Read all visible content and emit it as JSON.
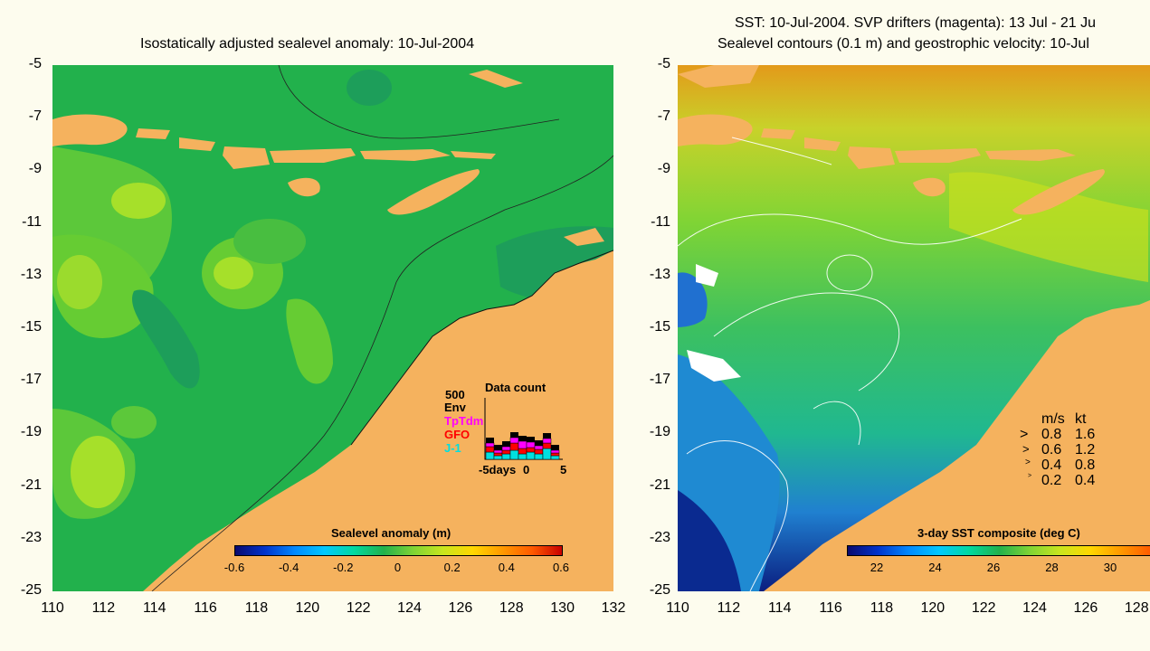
{
  "left_panel": {
    "title": "Isostatically adjusted sealevel anomaly: 10-Jul-2004",
    "y_ticks": [
      "-5",
      "-7",
      "-9",
      "-11",
      "-13",
      "-15",
      "-17",
      "-19",
      "-21",
      "-23",
      "-25"
    ],
    "x_ticks": [
      "110",
      "112",
      "114",
      "116",
      "118",
      "120",
      "122",
      "124",
      "126",
      "128",
      "130",
      "132"
    ],
    "colorbar": {
      "title": "Sealevel anomaly (m)",
      "ticks": [
        "-0.6",
        "-0.4",
        "-0.2",
        "0",
        "0.2",
        "0.4",
        "0.6"
      ]
    },
    "data_count": {
      "title": "Data count",
      "scale_label": "500",
      "series": [
        {
          "name": "Env",
          "color": "#000000"
        },
        {
          "name": "TpTdm",
          "color": "#ff00ff"
        },
        {
          "name": "GFO",
          "color": "#ff0000"
        },
        {
          "name": "J-1",
          "color": "#00e0e0"
        }
      ],
      "x_ticks": [
        "-5days",
        "0",
        "5"
      ]
    }
  },
  "right_panel": {
    "title_line1": "SST: 10-Jul-2004. SVP drifters (magenta): 13 Jul - 21 Ju",
    "title_line2": "Sealevel contours (0.1 m) and geostrophic velocity: 10-Jul",
    "y_ticks": [
      "-5",
      "-7",
      "-9",
      "-11",
      "-13",
      "-15",
      "-17",
      "-19",
      "-21",
      "-23",
      "-25"
    ],
    "x_ticks": [
      "110",
      "112",
      "114",
      "116",
      "118",
      "120",
      "122",
      "124",
      "126",
      "128"
    ],
    "colorbar": {
      "title": "3-day SST composite (deg C)",
      "ticks": [
        "22",
        "24",
        "26",
        "28",
        "30"
      ]
    },
    "velocity_legend": {
      "header_ms": "m/s",
      "header_kt": "kt",
      "rows": [
        {
          "ms": "0.8",
          "kt": "1.6"
        },
        {
          "ms": "0.6",
          "kt": "1.2"
        },
        {
          "ms": "0.4",
          "kt": "0.8"
        },
        {
          "ms": "0.2",
          "kt": "0.4"
        }
      ]
    }
  },
  "colors": {
    "land": "#f5b25e",
    "sea_green": "#22b14c",
    "background": "#fdfcee"
  }
}
